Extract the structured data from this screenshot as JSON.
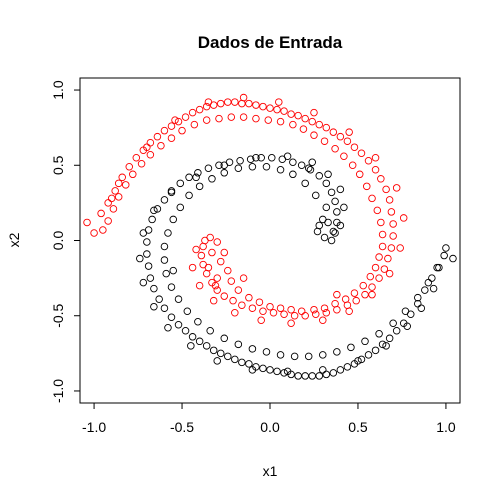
{
  "chart_data": {
    "type": "scatter",
    "title": "Dados de Entrada",
    "xlabel": "x1",
    "ylabel": "x2",
    "xlim": [
      -1.08,
      1.08
    ],
    "ylim": [
      -1.08,
      1.08
    ],
    "xticks": [
      -1.0,
      -0.5,
      0.0,
      0.5,
      1.0
    ],
    "xtick_labels": [
      "-1.0",
      "-0.5",
      "0.0",
      "0.5",
      "1.0"
    ],
    "yticks": [
      -1.0,
      -0.5,
      0.0,
      0.5,
      1.0
    ],
    "ytick_labels": [
      "-1.0",
      "-0.5",
      "0.0",
      "0.5",
      "1.0"
    ],
    "grid": false,
    "legend": "none",
    "marker": "open-circle",
    "series": [
      {
        "color": "#ff0000",
        "points": [
          [
            -1.04,
            0.12
          ],
          [
            -1.0,
            0.05
          ],
          [
            -0.96,
            0.18
          ],
          [
            -0.92,
            0.25
          ],
          [
            -0.88,
            0.33
          ],
          [
            -0.84,
            0.42
          ],
          [
            -0.8,
            0.49
          ],
          [
            -0.76,
            0.55
          ],
          [
            -0.72,
            0.6
          ],
          [
            -0.68,
            0.65
          ],
          [
            -0.64,
            0.69
          ],
          [
            -0.6,
            0.73
          ],
          [
            -0.56,
            0.76
          ],
          [
            -0.52,
            0.79
          ],
          [
            -0.48,
            0.82
          ],
          [
            -0.44,
            0.85
          ],
          [
            -0.4,
            0.87
          ],
          [
            -0.36,
            0.89
          ],
          [
            -0.32,
            0.9
          ],
          [
            -0.28,
            0.91
          ],
          [
            -0.24,
            0.92
          ],
          [
            -0.2,
            0.92
          ],
          [
            -0.16,
            0.91
          ],
          [
            -0.12,
            0.91
          ],
          [
            -0.08,
            0.9
          ],
          [
            -0.04,
            0.89
          ],
          [
            0.0,
            0.88
          ],
          [
            0.04,
            0.87
          ],
          [
            0.08,
            0.86
          ],
          [
            0.12,
            0.84
          ],
          [
            0.16,
            0.83
          ],
          [
            0.2,
            0.81
          ],
          [
            0.24,
            0.79
          ],
          [
            0.28,
            0.77
          ],
          [
            0.32,
            0.75
          ],
          [
            0.36,
            0.72
          ],
          [
            0.4,
            0.69
          ],
          [
            0.44,
            0.66
          ],
          [
            0.48,
            0.62
          ],
          [
            0.52,
            0.58
          ],
          [
            0.56,
            0.53
          ],
          [
            0.6,
            0.47
          ],
          [
            0.63,
            0.41
          ],
          [
            0.66,
            0.34
          ],
          [
            0.68,
            0.27
          ],
          [
            0.69,
            0.19
          ],
          [
            0.7,
            0.11
          ],
          [
            0.7,
            0.03
          ],
          [
            0.69,
            -0.05
          ],
          [
            0.67,
            -0.12
          ],
          [
            0.65,
            -0.19
          ],
          [
            0.62,
            -0.25
          ],
          [
            0.58,
            -0.31
          ],
          [
            0.54,
            -0.36
          ],
          [
            0.49,
            -0.4
          ],
          [
            0.44,
            -0.43
          ],
          [
            0.38,
            -0.46
          ],
          [
            0.32,
            -0.48
          ],
          [
            0.26,
            -0.49
          ],
          [
            0.2,
            -0.5
          ],
          [
            0.14,
            -0.5
          ],
          [
            0.08,
            -0.49
          ],
          [
            0.02,
            -0.48
          ],
          [
            -0.04,
            -0.47
          ],
          [
            -0.1,
            -0.45
          ],
          [
            -0.16,
            -0.43
          ],
          [
            -0.21,
            -0.4
          ],
          [
            -0.26,
            -0.37
          ],
          [
            -0.3,
            -0.33
          ],
          [
            -0.33,
            -0.28
          ],
          [
            -0.36,
            -0.22
          ],
          [
            -0.38,
            -0.16
          ],
          [
            -0.39,
            -0.1
          ],
          [
            -0.38,
            -0.04
          ],
          [
            -0.37,
            0.0
          ],
          [
            -0.34,
            0.02
          ],
          [
            -0.3,
            -0.01
          ],
          [
            -0.33,
            -0.08
          ],
          [
            -0.28,
            -0.14
          ],
          [
            -0.24,
            -0.2
          ],
          [
            -0.22,
            -0.27
          ],
          [
            -0.18,
            -0.33
          ],
          [
            -0.12,
            -0.38
          ],
          [
            -0.06,
            -0.41
          ],
          [
            0.0,
            -0.44
          ],
          [
            0.06,
            -0.45
          ],
          [
            0.12,
            -0.46
          ],
          [
            0.18,
            -0.47
          ],
          [
            0.25,
            -0.46
          ],
          [
            0.31,
            -0.45
          ],
          [
            0.37,
            -0.42
          ],
          [
            0.43,
            -0.39
          ],
          [
            0.48,
            -0.35
          ],
          [
            0.53,
            -0.3
          ],
          [
            0.57,
            -0.24
          ],
          [
            0.6,
            -0.18
          ],
          [
            0.62,
            -0.11
          ],
          [
            0.64,
            -0.04
          ],
          [
            0.64,
            0.04
          ],
          [
            0.63,
            0.12
          ],
          [
            0.61,
            0.2
          ],
          [
            0.58,
            0.28
          ],
          [
            0.55,
            0.36
          ],
          [
            0.51,
            0.44
          ],
          [
            0.47,
            0.5
          ],
          [
            0.42,
            0.56
          ],
          [
            0.37,
            0.61
          ],
          [
            0.31,
            0.66
          ],
          [
            0.25,
            0.7
          ],
          [
            0.19,
            0.74
          ],
          [
            0.13,
            0.77
          ],
          [
            0.06,
            0.79
          ],
          [
            -0.01,
            0.8
          ],
          [
            -0.08,
            0.81
          ],
          [
            -0.15,
            0.82
          ],
          [
            -0.22,
            0.82
          ],
          [
            -0.29,
            0.81
          ],
          [
            -0.36,
            0.8
          ],
          [
            -0.43,
            0.77
          ],
          [
            -0.5,
            0.73
          ],
          [
            -0.56,
            0.68
          ],
          [
            -0.62,
            0.63
          ],
          [
            -0.68,
            0.57
          ],
          [
            -0.73,
            0.51
          ],
          [
            -0.78,
            0.44
          ],
          [
            -0.82,
            0.37
          ],
          [
            -0.86,
            0.29
          ],
          [
            -0.89,
            0.21
          ],
          [
            -0.92,
            0.13
          ],
          [
            -0.95,
            0.07
          ],
          [
            -0.9,
            0.28
          ],
          [
            -0.86,
            0.38
          ],
          [
            -0.7,
            0.62
          ],
          [
            -0.54,
            0.8
          ],
          [
            -0.35,
            0.92
          ],
          [
            -0.15,
            0.95
          ],
          [
            0.05,
            0.92
          ],
          [
            0.25,
            0.85
          ],
          [
            0.45,
            0.72
          ],
          [
            0.6,
            0.55
          ],
          [
            0.72,
            0.35
          ],
          [
            0.76,
            0.15
          ],
          [
            0.74,
            -0.05
          ],
          [
            0.68,
            -0.22
          ],
          [
            0.58,
            -0.36
          ],
          [
            0.45,
            -0.47
          ],
          [
            0.3,
            -0.53
          ],
          [
            0.12,
            -0.55
          ],
          [
            -0.05,
            -0.53
          ],
          [
            -0.2,
            -0.48
          ],
          [
            -0.32,
            -0.4
          ],
          [
            -0.4,
            -0.3
          ],
          [
            -0.44,
            -0.18
          ],
          [
            -0.42,
            -0.06
          ],
          [
            -0.35,
            -0.18
          ],
          [
            -0.3,
            -0.25
          ],
          [
            -0.26,
            -0.08
          ],
          [
            -0.31,
            -0.3
          ],
          [
            -0.15,
            -0.25
          ],
          [
            0.38,
            -0.36
          ]
        ]
      },
      {
        "color": "#000000",
        "points": [
          [
            1.04,
            -0.12
          ],
          [
            1.0,
            -0.05
          ],
          [
            0.96,
            -0.18
          ],
          [
            0.92,
            -0.25
          ],
          [
            0.88,
            -0.33
          ],
          [
            0.84,
            -0.42
          ],
          [
            0.8,
            -0.49
          ],
          [
            0.76,
            -0.55
          ],
          [
            0.72,
            -0.6
          ],
          [
            0.68,
            -0.65
          ],
          [
            0.64,
            -0.69
          ],
          [
            0.6,
            -0.73
          ],
          [
            0.56,
            -0.76
          ],
          [
            0.52,
            -0.79
          ],
          [
            0.48,
            -0.82
          ],
          [
            0.44,
            -0.84
          ],
          [
            0.4,
            -0.86
          ],
          [
            0.36,
            -0.88
          ],
          [
            0.32,
            -0.89
          ],
          [
            0.28,
            -0.9
          ],
          [
            0.24,
            -0.9
          ],
          [
            0.2,
            -0.9
          ],
          [
            0.16,
            -0.9
          ],
          [
            0.12,
            -0.89
          ],
          [
            0.08,
            -0.88
          ],
          [
            0.04,
            -0.87
          ],
          [
            0.0,
            -0.86
          ],
          [
            -0.04,
            -0.85
          ],
          [
            -0.08,
            -0.84
          ],
          [
            -0.12,
            -0.82
          ],
          [
            -0.16,
            -0.81
          ],
          [
            -0.2,
            -0.79
          ],
          [
            -0.24,
            -0.77
          ],
          [
            -0.28,
            -0.75
          ],
          [
            -0.32,
            -0.73
          ],
          [
            -0.36,
            -0.7
          ],
          [
            -0.4,
            -0.67
          ],
          [
            -0.44,
            -0.64
          ],
          [
            -0.48,
            -0.6
          ],
          [
            -0.52,
            -0.56
          ],
          [
            -0.56,
            -0.51
          ],
          [
            -0.6,
            -0.45
          ],
          [
            -0.63,
            -0.39
          ],
          [
            -0.66,
            -0.32
          ],
          [
            -0.68,
            -0.25
          ],
          [
            -0.69,
            -0.17
          ],
          [
            -0.7,
            -0.09
          ],
          [
            -0.7,
            -0.01
          ],
          [
            -0.69,
            0.07
          ],
          [
            -0.67,
            0.14
          ],
          [
            -0.64,
            0.21
          ],
          [
            -0.6,
            0.27
          ],
          [
            -0.56,
            0.33
          ],
          [
            -0.51,
            0.38
          ],
          [
            -0.46,
            0.42
          ],
          [
            -0.41,
            0.45
          ],
          [
            -0.35,
            0.48
          ],
          [
            -0.29,
            0.5
          ],
          [
            -0.23,
            0.52
          ],
          [
            -0.17,
            0.53
          ],
          [
            -0.11,
            0.54
          ],
          [
            -0.05,
            0.55
          ],
          [
            0.01,
            0.55
          ],
          [
            0.07,
            0.54
          ],
          [
            0.13,
            0.52
          ],
          [
            0.18,
            0.5
          ],
          [
            0.23,
            0.47
          ],
          [
            0.28,
            0.43
          ],
          [
            0.32,
            0.38
          ],
          [
            0.35,
            0.32
          ],
          [
            0.37,
            0.26
          ],
          [
            0.38,
            0.19
          ],
          [
            0.38,
            0.12
          ],
          [
            0.37,
            0.05
          ],
          [
            0.35,
            0.0
          ],
          [
            0.31,
            0.02
          ],
          [
            0.27,
            0.06
          ],
          [
            0.3,
            0.14
          ],
          [
            0.32,
            0.22
          ],
          [
            0.26,
            0.3
          ],
          [
            0.2,
            0.38
          ],
          [
            0.13,
            0.44
          ],
          [
            0.06,
            0.47
          ],
          [
            -0.02,
            0.49
          ],
          [
            -0.1,
            0.49
          ],
          [
            -0.18,
            0.48
          ],
          [
            -0.26,
            0.45
          ],
          [
            -0.33,
            0.41
          ],
          [
            -0.4,
            0.36
          ],
          [
            -0.46,
            0.3
          ],
          [
            -0.51,
            0.22
          ],
          [
            -0.55,
            0.14
          ],
          [
            -0.58,
            0.05
          ],
          [
            -0.6,
            -0.04
          ],
          [
            -0.6,
            -0.13
          ],
          [
            -0.59,
            -0.22
          ],
          [
            -0.56,
            -0.31
          ],
          [
            -0.52,
            -0.39
          ],
          [
            -0.47,
            -0.47
          ],
          [
            -0.41,
            -0.54
          ],
          [
            -0.34,
            -0.6
          ],
          [
            -0.26,
            -0.65
          ],
          [
            -0.18,
            -0.69
          ],
          [
            -0.1,
            -0.72
          ],
          [
            -0.02,
            -0.74
          ],
          [
            0.06,
            -0.76
          ],
          [
            0.14,
            -0.77
          ],
          [
            0.22,
            -0.77
          ],
          [
            0.3,
            -0.76
          ],
          [
            0.38,
            -0.74
          ],
          [
            0.46,
            -0.71
          ],
          [
            0.54,
            -0.67
          ],
          [
            0.62,
            -0.62
          ],
          [
            0.7,
            -0.55
          ],
          [
            0.77,
            -0.47
          ],
          [
            0.84,
            -0.38
          ],
          [
            0.9,
            -0.28
          ],
          [
            0.95,
            -0.18
          ],
          [
            0.99,
            -0.1
          ],
          [
            0.93,
            -0.32
          ],
          [
            0.86,
            -0.45
          ],
          [
            0.78,
            -0.57
          ],
          [
            0.66,
            -0.7
          ],
          [
            0.5,
            -0.8
          ],
          [
            0.3,
            -0.86
          ],
          [
            0.1,
            -0.87
          ],
          [
            -0.1,
            -0.86
          ],
          [
            -0.3,
            -0.8
          ],
          [
            -0.45,
            -0.7
          ],
          [
            -0.58,
            -0.58
          ],
          [
            -0.66,
            -0.44
          ],
          [
            -0.72,
            -0.28
          ],
          [
            -0.74,
            -0.12
          ],
          [
            -0.72,
            0.05
          ],
          [
            -0.66,
            0.2
          ],
          [
            -0.56,
            0.32
          ],
          [
            -0.42,
            0.42
          ],
          [
            -0.26,
            0.5
          ],
          [
            -0.08,
            0.55
          ],
          [
            0.1,
            0.56
          ],
          [
            0.24,
            0.52
          ],
          [
            0.33,
            0.44
          ],
          [
            0.4,
            0.34
          ],
          [
            0.42,
            0.22
          ],
          [
            0.4,
            0.1
          ],
          [
            0.36,
            0.06
          ],
          [
            0.28,
            0.1
          ],
          [
            0.33,
            0.12
          ],
          [
            0.22,
            0.48
          ],
          [
            -0.55,
            -0.2
          ]
        ]
      }
    ]
  }
}
